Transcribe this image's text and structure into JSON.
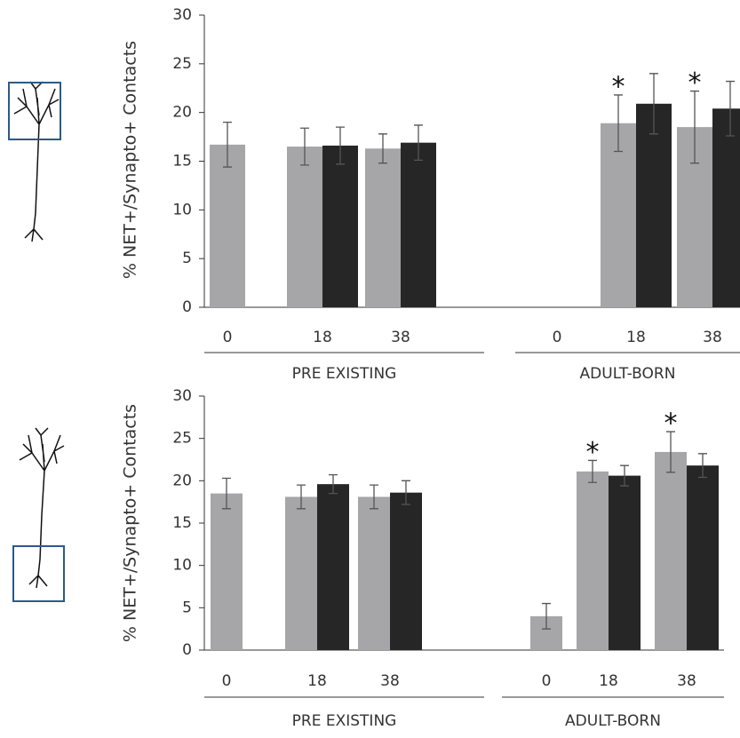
{
  "chart_data": [
    {
      "type": "bar",
      "y_label": "% NET+/Synapto+ Contacts",
      "groups": [
        {
          "name": "PRE EXISTING",
          "categories": [
            "0",
            "18",
            "38"
          ]
        },
        {
          "name": "ADULT-BORN",
          "categories": [
            "0",
            "18",
            "38"
          ]
        }
      ],
      "series": [
        {
          "color": "#a6a6a8",
          "values": [
            16.7,
            16.5,
            16.3,
            null,
            18.9,
            18.5
          ],
          "errors": [
            2.3,
            1.9,
            1.5,
            null,
            2.9,
            3.7
          ]
        },
        {
          "color": "#262626",
          "values": [
            null,
            16.6,
            16.9,
            null,
            20.9,
            20.4
          ],
          "errors": [
            null,
            1.9,
            1.8,
            null,
            3.1,
            2.8
          ]
        }
      ],
      "annotations": [
        {
          "text": "*",
          "series": 0,
          "index": 4
        },
        {
          "text": "*",
          "series": 0,
          "index": 5
        }
      ],
      "ylim": [
        0,
        30
      ],
      "yticks": [
        0,
        5,
        10,
        15,
        20,
        25,
        30
      ]
    },
    {
      "type": "bar",
      "y_label": "% NET+/Synapto+ Contacts",
      "groups": [
        {
          "name": "PRE EXISTING",
          "categories": [
            "0",
            "18",
            "38"
          ]
        },
        {
          "name": "ADULT-BORN",
          "categories": [
            "0",
            "18",
            "38"
          ]
        }
      ],
      "series": [
        {
          "color": "#a6a6a8",
          "values": [
            18.5,
            18.1,
            18.1,
            4.0,
            21.1,
            23.4
          ],
          "errors": [
            1.8,
            1.4,
            1.4,
            1.5,
            1.3,
            2.4
          ]
        },
        {
          "color": "#262626",
          "values": [
            null,
            19.6,
            18.6,
            null,
            20.6,
            21.8
          ],
          "errors": [
            null,
            1.1,
            1.4,
            null,
            1.2,
            1.4
          ]
        }
      ],
      "annotations": [
        {
          "text": "*",
          "series": 0,
          "index": 4
        },
        {
          "text": "*",
          "series": 0,
          "index": 5
        }
      ],
      "ylim": [
        0,
        30
      ],
      "yticks": [
        0,
        5,
        10,
        15,
        20,
        25,
        30
      ]
    }
  ]
}
